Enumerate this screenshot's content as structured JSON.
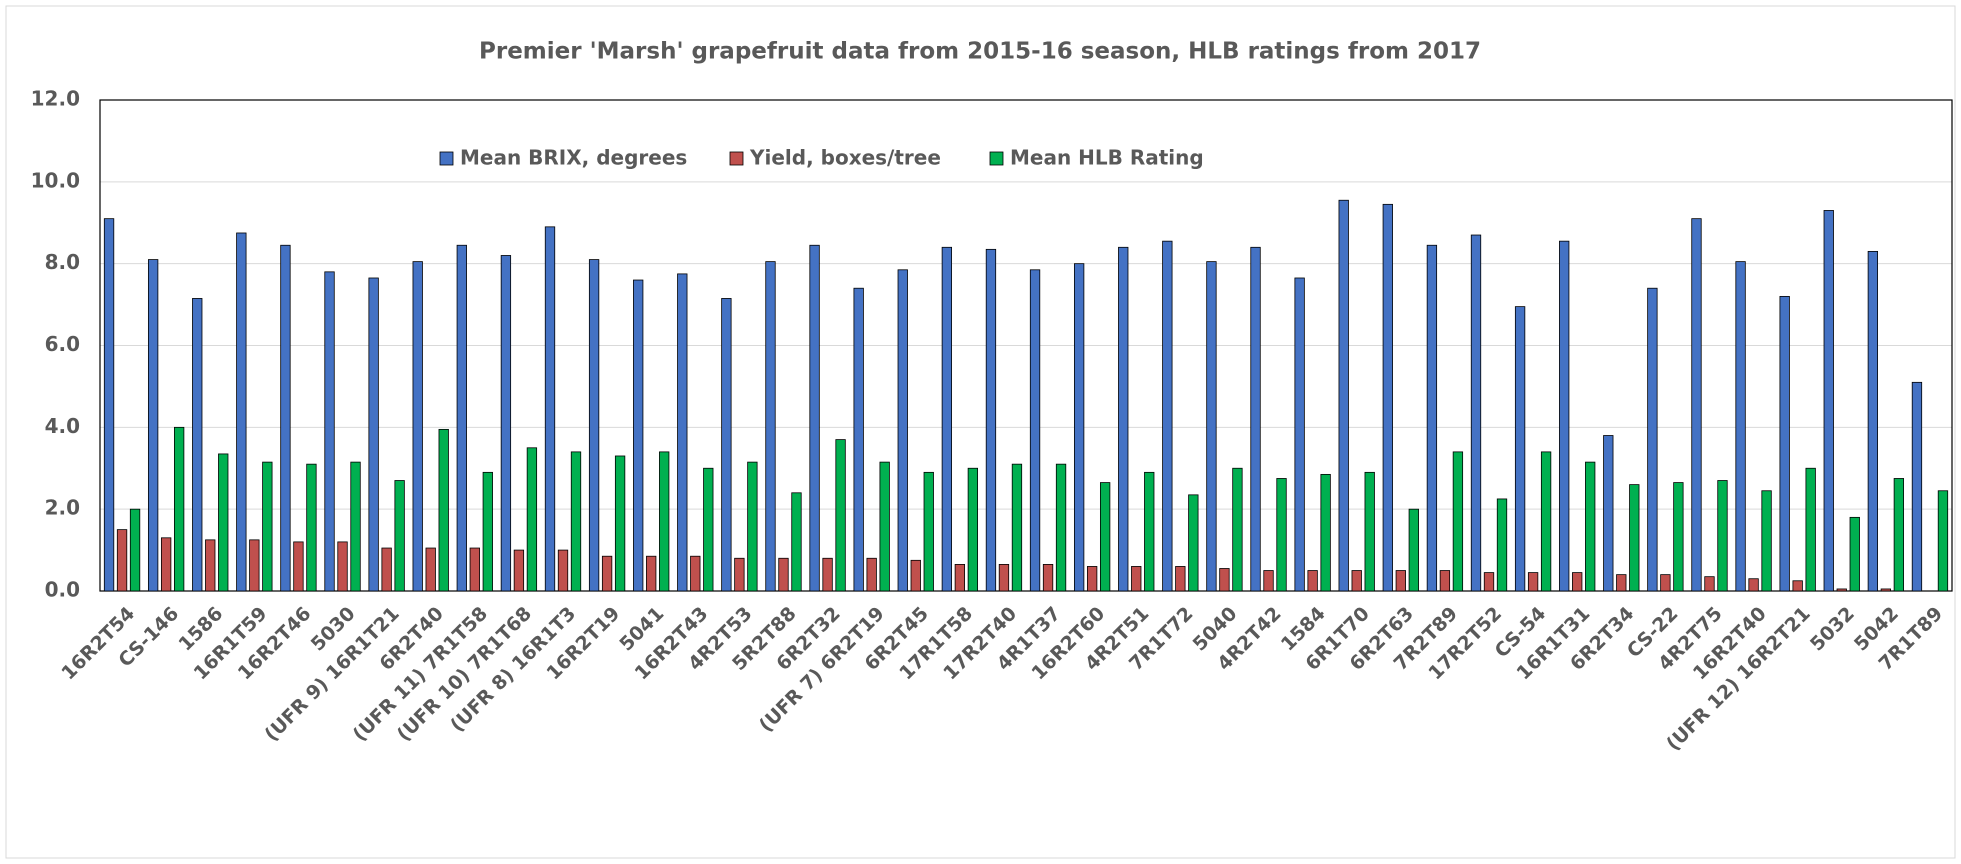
{
  "chart_data": {
    "type": "bar",
    "title": "Premier 'Marsh' grapefruit data from 2015-16 season, HLB ratings from 2017",
    "categories": [
      "16R2T54",
      "CS-146",
      "1586",
      "16R1T59",
      "16R2T46",
      "5030",
      "(UFR 9) 16R1T21",
      "6R2T40",
      "(UFR 11) 7R1T58",
      "(UFR 10) 7R1T68",
      "(UFR 8)  16R1T3",
      "16R2T19",
      "5041",
      "16R2T43",
      "4R2T53",
      "5R2T88",
      "6R2T32",
      "(UFR 7) 6R2T19",
      "6R2T45",
      "17R1T58",
      "17R2T40",
      "4R1T37",
      "16R2T60",
      "4R2T51",
      "7R1T72",
      "5040",
      "4R2T42",
      "1584",
      "6R1T70",
      "6R2T63",
      "7R2T89",
      "17R2T52",
      "CS-54",
      "16R1T31",
      "6R2T34",
      "CS-22",
      "4R2T75",
      "16R2T40",
      "(UFR 12) 16R2T21",
      "5032",
      "5042",
      "7R1T89"
    ],
    "series": [
      {
        "name": "Mean BRIX, degrees",
        "color": "#4472c4",
        "values": [
          9.1,
          8.1,
          7.15,
          8.75,
          8.45,
          7.8,
          7.65,
          8.05,
          8.45,
          8.2,
          8.9,
          8.1,
          7.6,
          7.75,
          7.15,
          8.05,
          8.45,
          7.4,
          7.85,
          8.4,
          8.35,
          7.85,
          8.0,
          8.4,
          8.55,
          8.05,
          8.4,
          7.65,
          9.55,
          9.45,
          8.45,
          8.7,
          6.95,
          8.55,
          3.8,
          7.4,
          9.1,
          8.05,
          7.2,
          9.3,
          8.3,
          5.1
        ]
      },
      {
        "name": "Yield, boxes/tree",
        "color": "#c0504d",
        "values": [
          1.5,
          1.3,
          1.25,
          1.25,
          1.2,
          1.2,
          1.05,
          1.05,
          1.05,
          1.0,
          1.0,
          0.85,
          0.85,
          0.85,
          0.8,
          0.8,
          0.8,
          0.8,
          0.75,
          0.65,
          0.65,
          0.65,
          0.6,
          0.6,
          0.6,
          0.55,
          0.5,
          0.5,
          0.5,
          0.5,
          0.5,
          0.45,
          0.45,
          0.45,
          0.4,
          0.4,
          0.35,
          0.3,
          0.25,
          0.05,
          0.05,
          0
        ]
      },
      {
        "name": "Mean HLB Rating",
        "color": "#00b050",
        "values": [
          2.0,
          4.0,
          3.35,
          3.15,
          3.1,
          3.15,
          2.7,
          3.95,
          2.9,
          3.5,
          3.4,
          3.3,
          3.4,
          3.0,
          3.15,
          2.4,
          3.7,
          3.15,
          2.9,
          3.0,
          3.1,
          3.1,
          2.65,
          2.9,
          2.35,
          3.0,
          2.75,
          2.85,
          2.9,
          2.0,
          3.4,
          2.25,
          3.4,
          3.15,
          2.6,
          2.65,
          2.7,
          2.45,
          3.0,
          1.8,
          2.75,
          2.45
        ]
      }
    ],
    "ylim": [
      0,
      12
    ],
    "yticks": [
      {
        "value": 0,
        "label": "0.0"
      },
      {
        "value": 2,
        "label": "2.0"
      },
      {
        "value": 4,
        "label": "4.0"
      },
      {
        "value": 6,
        "label": "6.0"
      },
      {
        "value": 8,
        "label": "8.0"
      },
      {
        "value": 10,
        "label": "10.0"
      },
      {
        "value": 12,
        "label": "12.0"
      }
    ],
    "grid": true
  }
}
